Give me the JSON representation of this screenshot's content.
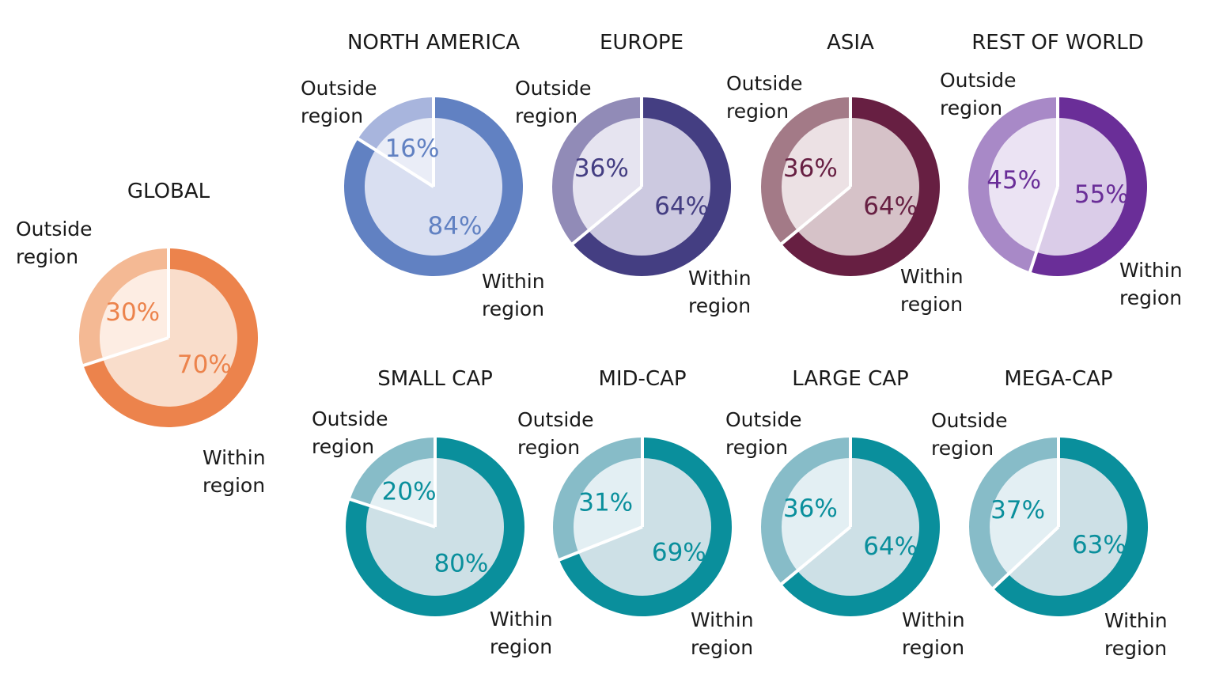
{
  "chart_data": [
    {
      "type": "pie",
      "title": "GLOBAL",
      "slices": [
        {
          "label": "Outside region",
          "value": 30,
          "value_text": "30%"
        },
        {
          "label": "Within region",
          "value": 70,
          "value_text": "70%"
        }
      ],
      "colors": {
        "outside_outer": "#f4b994",
        "within_outer": "#ec834c",
        "outside_inner": "#fdede3",
        "within_inner": "#f9ddcb",
        "text": "#ec834c"
      }
    },
    {
      "type": "pie",
      "title": "NORTH AMERICA",
      "slices": [
        {
          "label": "Outside region",
          "value": 16,
          "value_text": "16%"
        },
        {
          "label": "Within region",
          "value": 84,
          "value_text": "84%"
        }
      ],
      "colors": {
        "outside_outer": "#a8b5dd",
        "within_outer": "#6181c2",
        "outside_inner": "#eaedf7",
        "within_inner": "#d9dff1",
        "text": "#6181c2"
      }
    },
    {
      "type": "pie",
      "title": "EUROPE",
      "slices": [
        {
          "label": "Outside region",
          "value": 36,
          "value_text": "36%"
        },
        {
          "label": "Within region",
          "value": 64,
          "value_text": "64%"
        }
      ],
      "colors": {
        "outside_outer": "#918bb7",
        "within_outer": "#443e82",
        "outside_inner": "#e6e4f0",
        "within_inner": "#ccc9e0",
        "text": "#443e82"
      }
    },
    {
      "type": "pie",
      "title": "ASIA",
      "slices": [
        {
          "label": "Outside region",
          "value": 36,
          "value_text": "36%"
        },
        {
          "label": "Within region",
          "value": 64,
          "value_text": "64%"
        }
      ],
      "colors": {
        "outside_outer": "#a37a87",
        "within_outer": "#671f42",
        "outside_inner": "#ece1e4",
        "within_inner": "#d6c2c8",
        "text": "#671f42"
      }
    },
    {
      "type": "pie",
      "title": "REST OF WORLD",
      "slices": [
        {
          "label": "Outside region",
          "value": 45,
          "value_text": "45%"
        },
        {
          "label": "Within region",
          "value": 55,
          "value_text": "55%"
        }
      ],
      "colors": {
        "outside_outer": "#a889c7",
        "within_outer": "#6a2e98",
        "outside_inner": "#ebe3f3",
        "within_inner": "#dacce8",
        "text": "#6a2e98"
      }
    },
    {
      "type": "pie",
      "title": "SMALL CAP",
      "slices": [
        {
          "label": "Outside region",
          "value": 20,
          "value_text": "20%"
        },
        {
          "label": "Within region",
          "value": 80,
          "value_text": "80%"
        }
      ],
      "colors": {
        "outside_outer": "#87bcc8",
        "within_outer": "#0a8f9c",
        "outside_inner": "#e3eff3",
        "within_inner": "#cde0e6",
        "text": "#0a8f9c"
      }
    },
    {
      "type": "pie",
      "title": "MID-CAP",
      "slices": [
        {
          "label": "Outside region",
          "value": 31,
          "value_text": "31%"
        },
        {
          "label": "Within region",
          "value": 69,
          "value_text": "69%"
        }
      ],
      "colors": {
        "outside_outer": "#87bcc8",
        "within_outer": "#0a8f9c",
        "outside_inner": "#e3eff3",
        "within_inner": "#cde0e6",
        "text": "#0a8f9c"
      }
    },
    {
      "type": "pie",
      "title": "LARGE CAP",
      "slices": [
        {
          "label": "Outside region",
          "value": 36,
          "value_text": "36%"
        },
        {
          "label": "Within region",
          "value": 64,
          "value_text": "64%"
        }
      ],
      "colors": {
        "outside_outer": "#87bcc8",
        "within_outer": "#0a8f9c",
        "outside_inner": "#e3eff3",
        "within_inner": "#cde0e6",
        "text": "#0a8f9c"
      }
    },
    {
      "type": "pie",
      "title": "MEGA-CAP",
      "slices": [
        {
          "label": "Outside region",
          "value": 37,
          "value_text": "37%"
        },
        {
          "label": "Within region",
          "value": 63,
          "value_text": "63%"
        }
      ],
      "colors": {
        "outside_outer": "#87bcc8",
        "within_outer": "#0a8f9c",
        "outside_inner": "#e3eff3",
        "within_inner": "#cde0e6",
        "text": "#0a8f9c"
      }
    }
  ]
}
